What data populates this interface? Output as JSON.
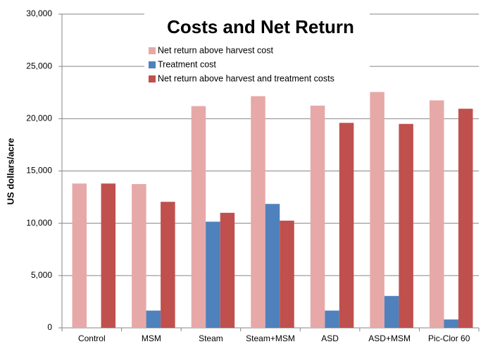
{
  "chart_data": {
    "type": "bar",
    "title": "Costs and Net Return",
    "y_label": "US dollars/acre",
    "categories": [
      "Control",
      "MSM",
      "Steam",
      "Steam+MSM",
      "ASD",
      "ASD+MSM",
      "Pic-Clor 60"
    ],
    "series": [
      {
        "name": "Net return  above harvest cost",
        "color": "#e6a9a8",
        "values": [
          13800,
          13750,
          21200,
          22150,
          21250,
          22550,
          21750
        ]
      },
      {
        "name": "Treatment cost",
        "color": "#4f81bd",
        "values": [
          0,
          1650,
          10150,
          11850,
          1650,
          3050,
          800
        ]
      },
      {
        "name": "Net return above harvest and treatment  costs",
        "color": "#c0504d",
        "values": [
          13800,
          12050,
          11000,
          10250,
          19600,
          19500,
          20950
        ]
      }
    ],
    "ylim": [
      0,
      30000
    ],
    "yticks": [
      0,
      {
        "value": 5000,
        "label": "5,000"
      },
      {
        "value": 10000,
        "label": "10,000"
      },
      {
        "value": 15000,
        "label": "15,000"
      },
      {
        "value": 20000,
        "label": "20,000"
      },
      {
        "value": 25000,
        "label": "25,000"
      },
      {
        "value": 30000,
        "label": "30,000"
      }
    ],
    "grid": true
  }
}
